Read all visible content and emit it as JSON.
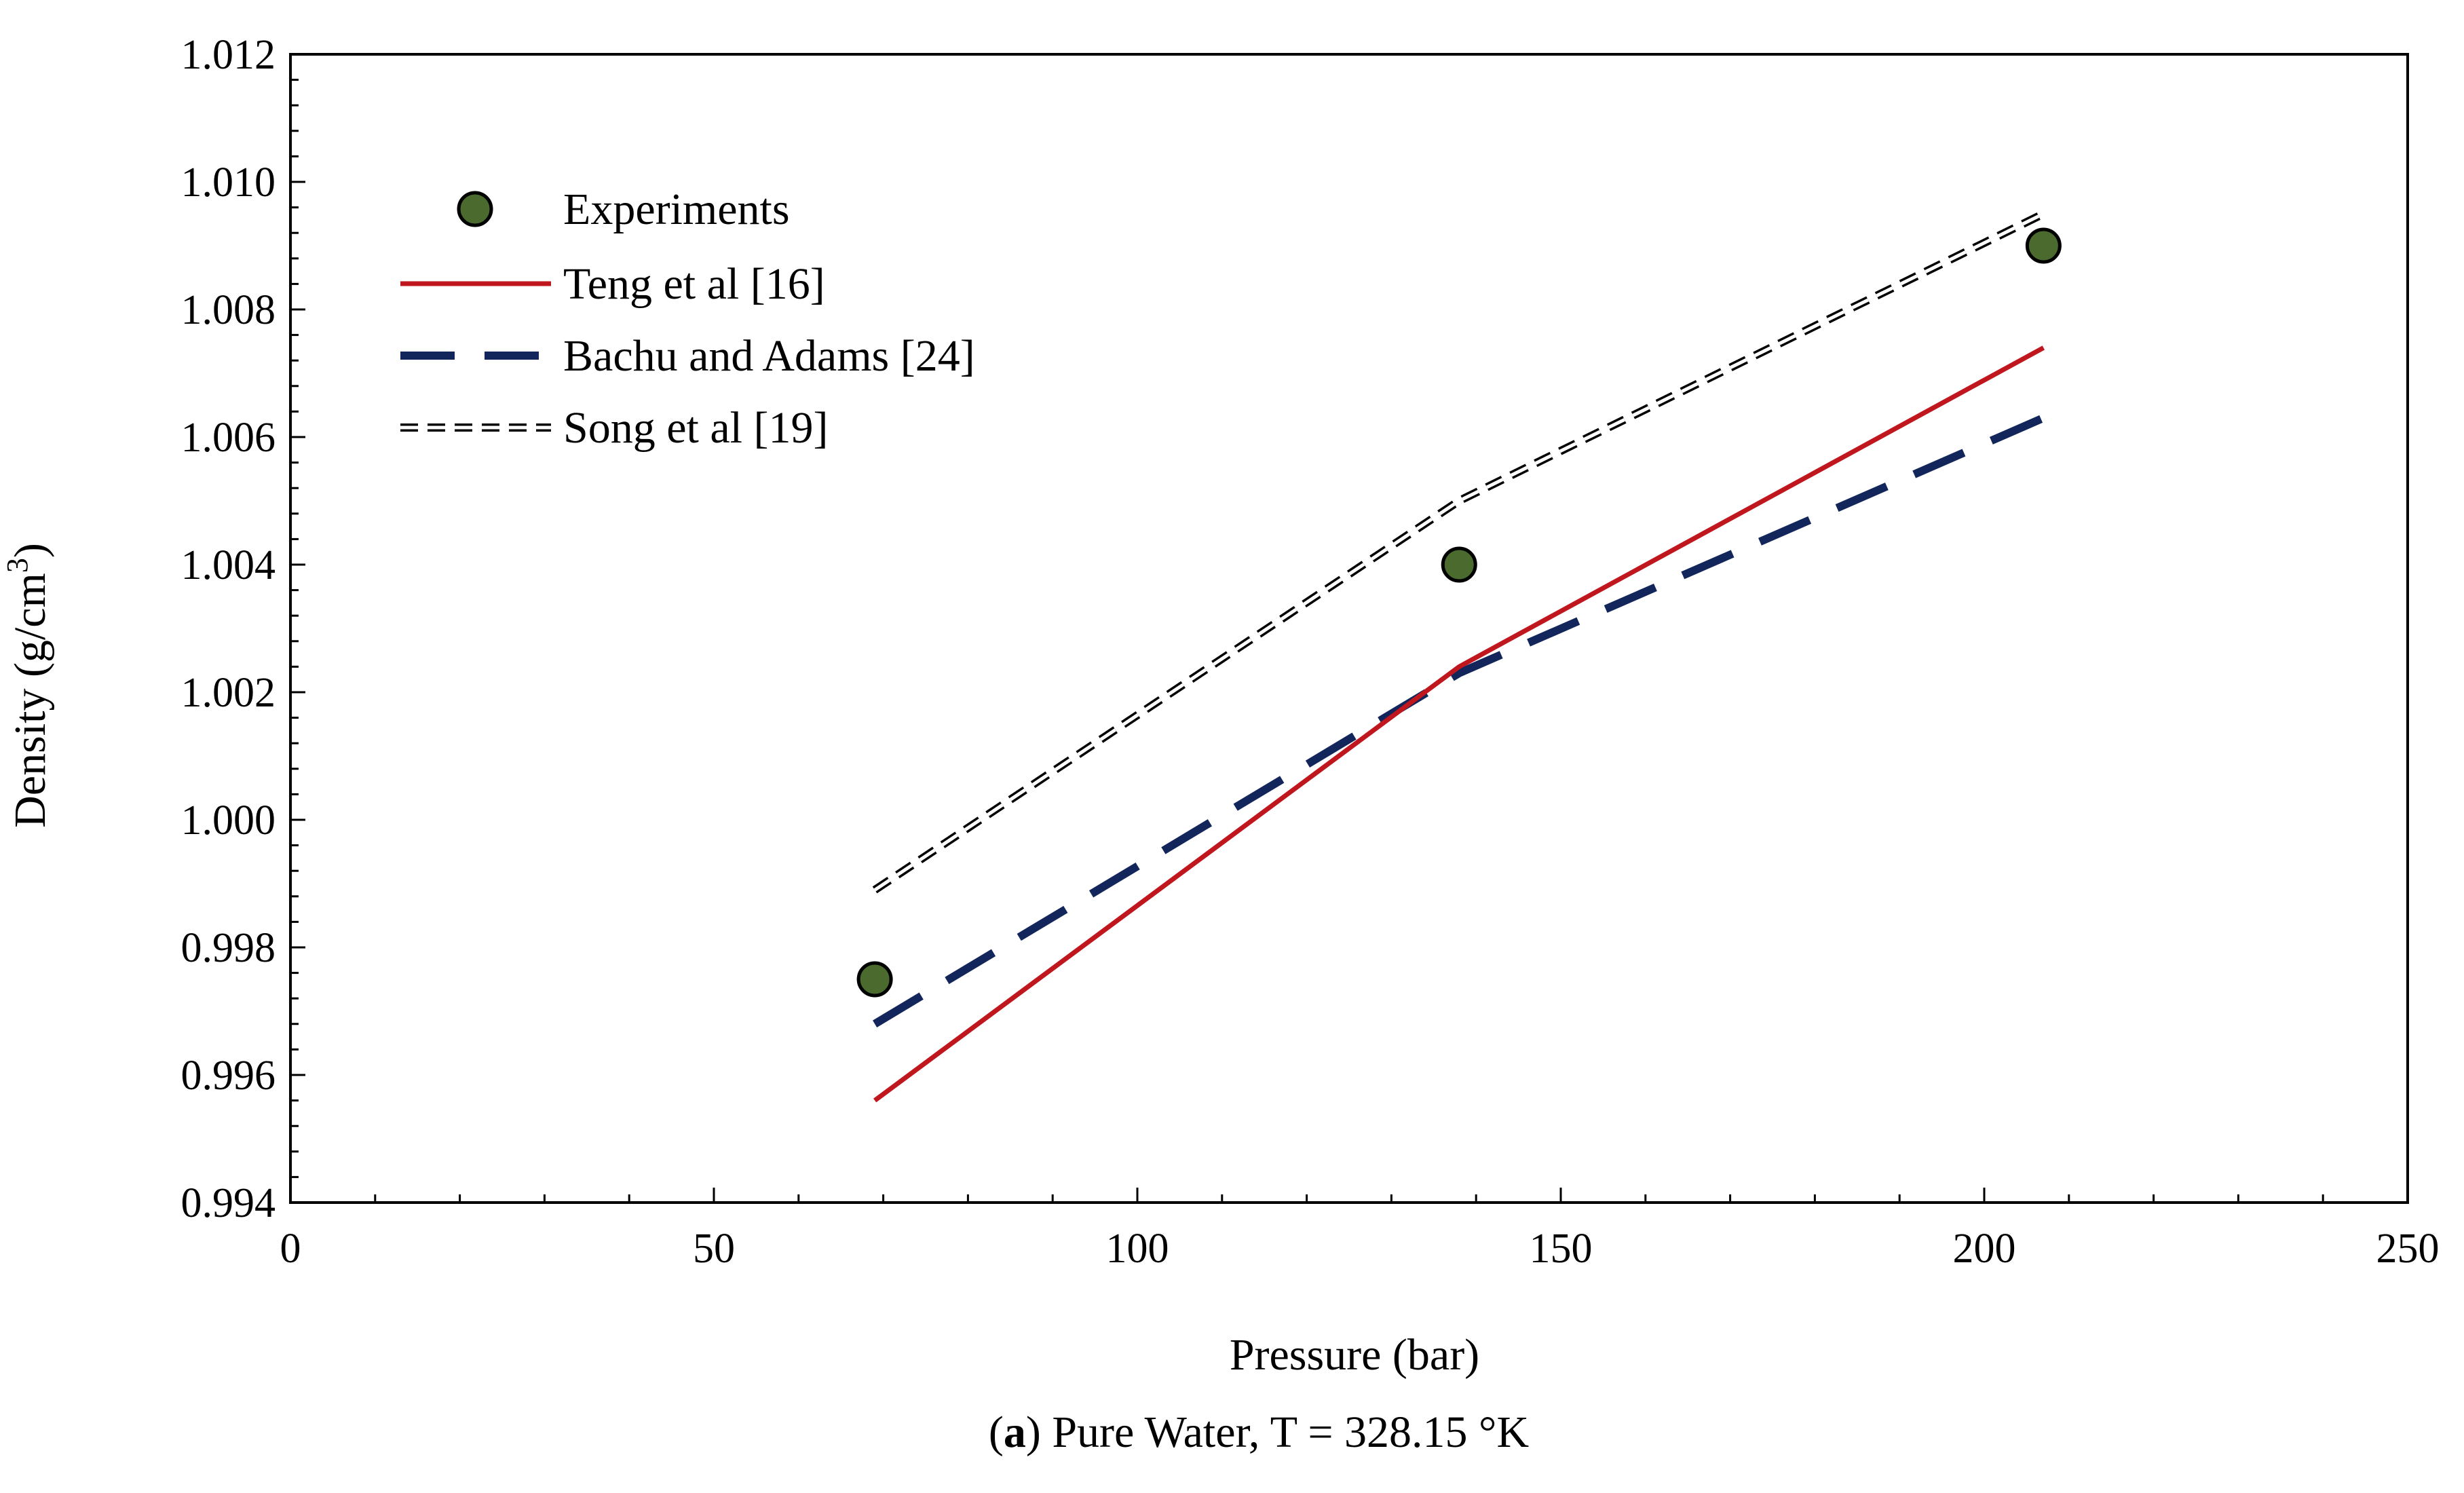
{
  "chart_data": {
    "type": "line",
    "title": "",
    "xlabel": "Pressure (bar)",
    "ylabel_base": "Density (g/cm",
    "ylabel_sup": "3",
    "ylabel_close": ")",
    "xlim": [
      0,
      250
    ],
    "ylim": [
      0.994,
      1.012
    ],
    "x_major_step": 50,
    "x_minor_step": 10,
    "y_major_step": 0.002,
    "y_minor_step": 0.0004,
    "grid": false,
    "legend_position": "top-left",
    "x_tick_labels": [
      "0",
      "50",
      "100",
      "150",
      "200",
      "250"
    ],
    "y_tick_labels": [
      "0.994",
      "0.996",
      "0.998",
      "1.000",
      "1.002",
      "1.004",
      "1.006",
      "1.008",
      "1.010",
      "1.012"
    ],
    "series": [
      {
        "name": "Experiments",
        "kind": "scatter",
        "color": "#4a6a2e",
        "edge": "#000000",
        "x": [
          69,
          138,
          207
        ],
        "y": [
          0.9975,
          1.004,
          1.009
        ]
      },
      {
        "name": "Teng et al [16]",
        "kind": "line",
        "style": "solid",
        "color": "#c0161d",
        "x": [
          69,
          138,
          207
        ],
        "y": [
          0.9956,
          1.0024,
          1.0074
        ]
      },
      {
        "name": "Bachu and Adams [24]",
        "kind": "line",
        "style": "dashed",
        "color": "#12265c",
        "x": [
          69,
          138,
          207
        ],
        "y": [
          0.9968,
          1.0023,
          1.0063
        ]
      },
      {
        "name": "Song et al [19]",
        "kind": "line",
        "style": "double-dashed",
        "color": "#000000",
        "x": [
          69,
          138,
          207
        ],
        "y": [
          0.9989,
          1.005,
          1.0095
        ]
      }
    ]
  },
  "caption": {
    "letter": "a",
    "text": " Pure Water, T = 328.15 °K"
  }
}
